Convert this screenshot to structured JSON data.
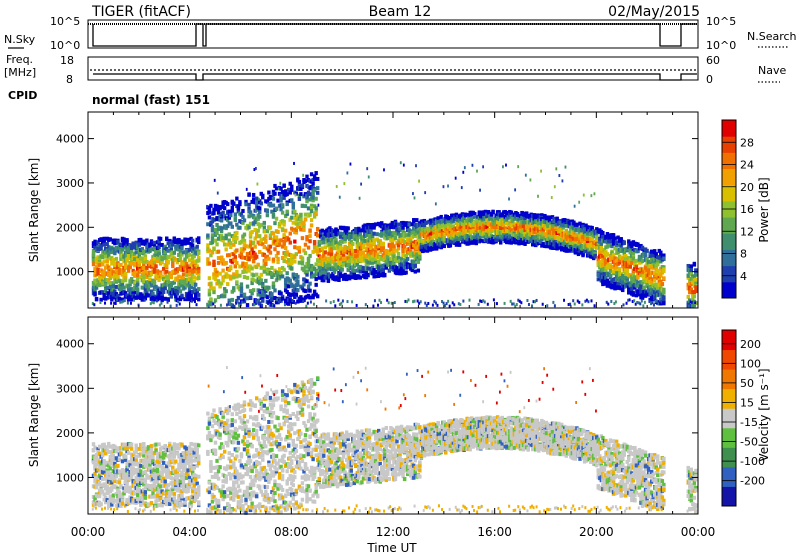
{
  "header": {
    "radar": "TIGER (fitACF)",
    "beam": "Beam 12",
    "date": "02/May/2015"
  },
  "status": {
    "nsky_label": "N.Sky",
    "nsky_ticks": [
      "10^5",
      "10^0"
    ],
    "nsearch_label": "N.Search",
    "nsearch_ticks": [
      "10^5",
      "10^0"
    ],
    "freq_label": "Freq.",
    "freq_unit": "[MHz]",
    "freq_ticks": [
      "18",
      "8"
    ],
    "nave_label": "Nave",
    "nave_ticks": [
      "60",
      "0"
    ],
    "cpid_label": "CPID",
    "cpid_text": "normal (fast) 151"
  },
  "chart_data": [
    {
      "type": "heatmap",
      "parameter": "Power",
      "ylabel": "Slant Range [km]",
      "ylim": [
        180,
        4600
      ],
      "yticks": [
        "1000",
        "2000",
        "3000",
        "4000"
      ],
      "x_range": [
        "00:00",
        "24:00"
      ],
      "colorbar": {
        "label": "Power [dB]",
        "ticks": [
          "28",
          "24",
          "20",
          "16",
          "12",
          "8",
          "4"
        ],
        "range": [
          0,
          32
        ],
        "colors": [
          "#0000cc",
          "#1f3fae",
          "#2f6f9a",
          "#3f8f6f",
          "#5fa84f",
          "#8fc02f",
          "#d8c000",
          "#f0a000",
          "#f07000",
          "#e84000",
          "#e00000"
        ]
      },
      "data_gaps_hours": [
        [
          4.3,
          4.6
        ],
        [
          22.6,
          23.5
        ]
      ]
    },
    {
      "type": "heatmap",
      "parameter": "Velocity",
      "ylabel": "Slant Range [km]",
      "ylim": [
        180,
        4600
      ],
      "yticks": [
        "1000",
        "2000",
        "3000",
        "4000"
      ],
      "x_range": [
        "00:00",
        "24:00"
      ],
      "xticks": [
        "00:00",
        "04:00",
        "08:00",
        "12:00",
        "16:00",
        "20:00",
        "00:00"
      ],
      "xlabel": "Time UT",
      "colorbar": {
        "label": "Velocity [m s⁻¹]",
        "ticks": [
          "200",
          "100",
          "50",
          "15",
          "-15",
          "-50",
          "-100",
          "-200"
        ],
        "colors": [
          "#1414a8",
          "#3060c0",
          "#3f8f4f",
          "#5fbf3f",
          "#c8c8c8",
          "#f0b000",
          "#f07800",
          "#f04800",
          "#e00000"
        ]
      },
      "data_gaps_hours": [
        [
          4.3,
          4.6
        ],
        [
          22.6,
          23.5
        ]
      ]
    }
  ]
}
